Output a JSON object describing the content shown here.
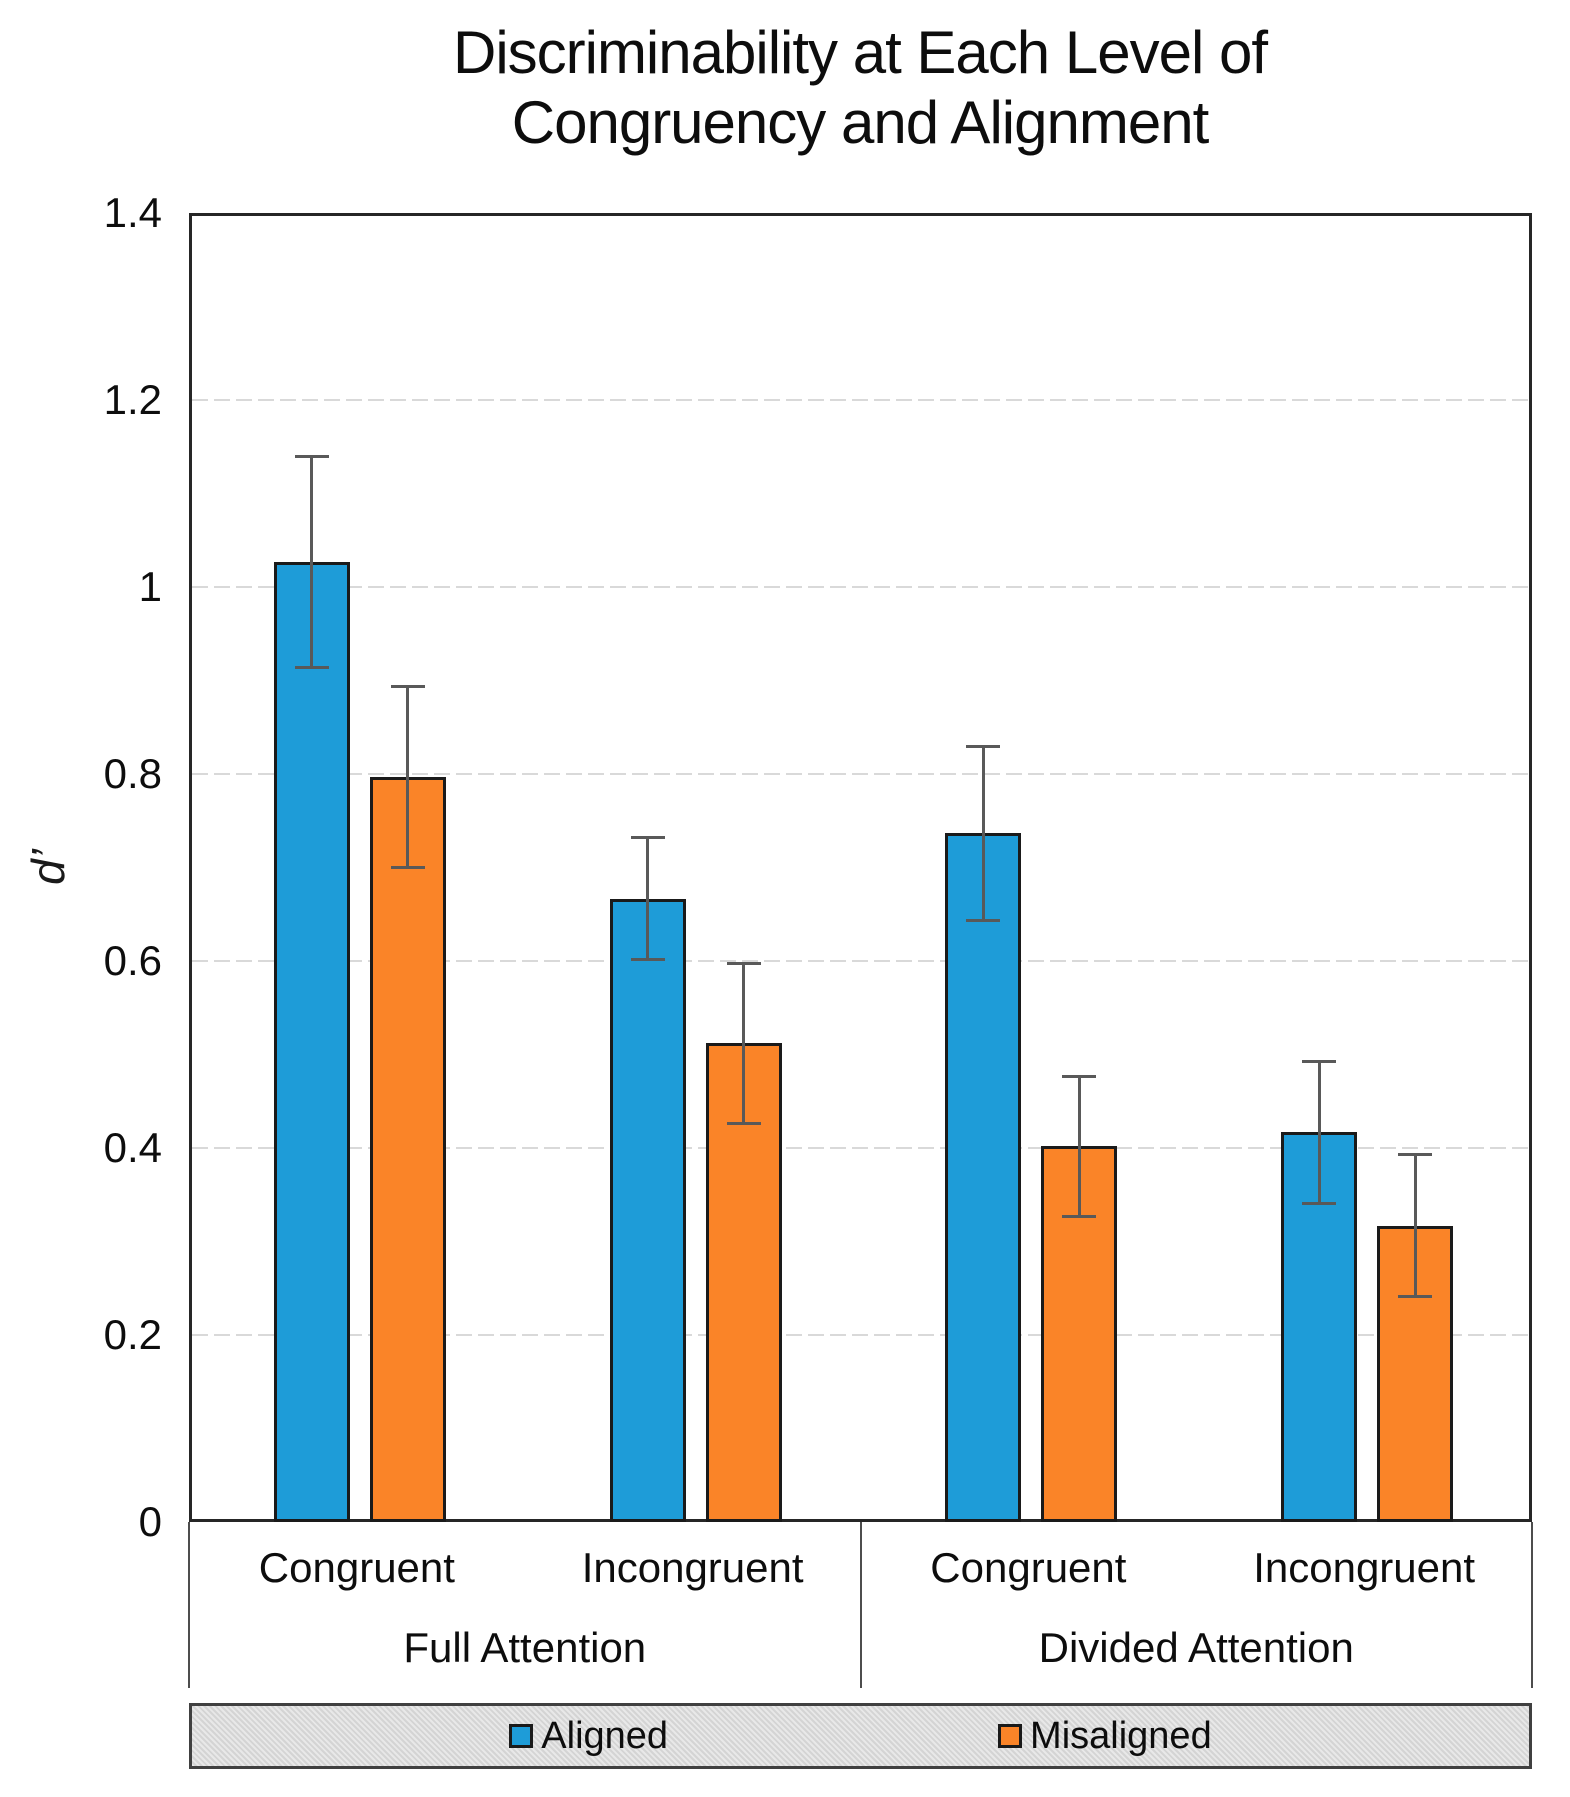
{
  "chart_data": {
    "type": "bar",
    "title": "Discriminability at Each Level of Congruency and Alignment",
    "title_lines": [
      "Discriminability at Each Level of",
      "Congruency and Alignment"
    ],
    "ylabel": "d’",
    "xlabel": "",
    "ylim": [
      0,
      1.4
    ],
    "yticks": [
      0,
      0.2,
      0.4,
      0.6,
      0.8,
      1,
      1.2,
      1.4
    ],
    "ytick_labels": [
      "0",
      "0.2",
      "0.4",
      "0.6",
      "0.8",
      "1",
      "1.2",
      "1.4"
    ],
    "grid": true,
    "gridline_color": "#d9d9d9",
    "legend_position": "bottom",
    "groups": [
      {
        "label": "Full Attention",
        "categories": [
          "Congruent",
          "Incongruent"
        ]
      },
      {
        "label": "Divided Attention",
        "categories": [
          "Congruent",
          "Incongruent"
        ]
      }
    ],
    "category_order": [
      "Full Attention / Congruent",
      "Full Attention / Incongruent",
      "Divided Attention / Congruent",
      "Divided Attention / Incongruent"
    ],
    "series": [
      {
        "name": "Aligned",
        "color": "#1E9CD8",
        "values": [
          1.03,
          0.67,
          0.74,
          0.42
        ],
        "errors": [
          0.113,
          0.065,
          0.093,
          0.076
        ]
      },
      {
        "name": "Misaligned",
        "color": "#FA8428",
        "values": [
          0.8,
          0.515,
          0.405,
          0.32
        ],
        "errors": [
          0.097,
          0.086,
          0.075,
          0.076
        ]
      }
    ],
    "error_bar_color": "#595959",
    "bar_border_color": "#1a1a1a",
    "axis_color": "#262626"
  }
}
